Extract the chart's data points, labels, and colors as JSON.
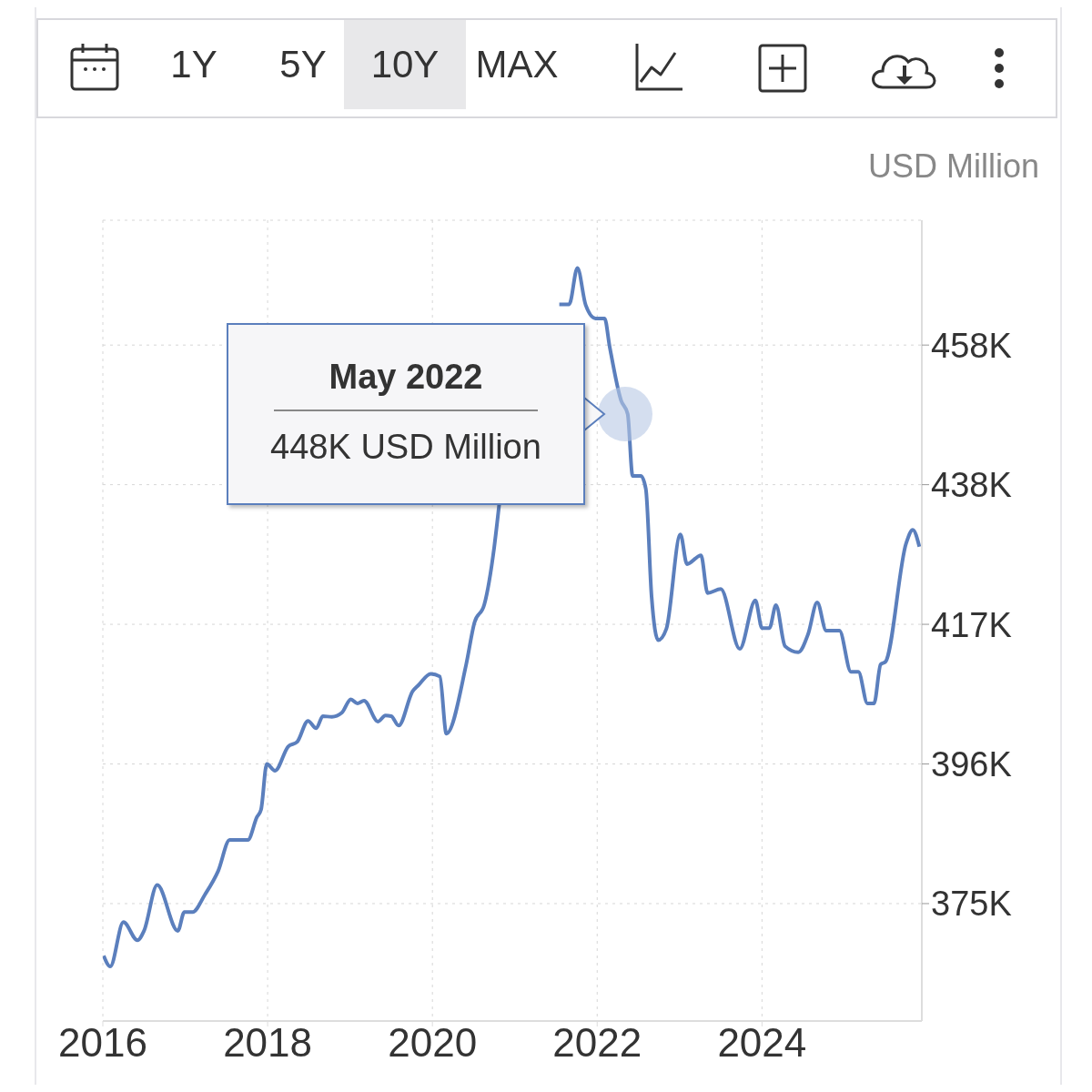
{
  "chart_data": {
    "type": "line",
    "ylabel": "USD Million",
    "annotations": [
      "1Y",
      "5Y",
      "10Y",
      "MAX",
      "May 2022",
      "448K USD Million"
    ],
    "x": [
      2016.01,
      2016.09,
      2016.25,
      2016.42,
      2016.5,
      2016.66,
      2016.91,
      2016.99,
      2017.09,
      2017.24,
      2017.4,
      2017.54,
      2017.76,
      2017.87,
      2017.92,
      2017.99,
      2018.09,
      2018.25,
      2018.36,
      2018.49,
      2018.59,
      2018.67,
      2018.78,
      2018.9,
      2019.01,
      2019.09,
      2019.17,
      2019.34,
      2019.43,
      2019.5,
      2019.59,
      2019.76,
      2019.83,
      2019.98,
      2020.09,
      2020.17,
      2020.41,
      2020.51,
      2020.63,
      2020.75,
      2020.81,
      2021.05,
      2021.27,
      2021.38,
      2021.54,
      2021.66,
      2021.76,
      2021.86,
      2021.98,
      2022.09,
      2022.15,
      2022.29,
      2022.37,
      2022.43,
      2022.53,
      2022.59,
      2022.66,
      2022.74,
      2022.84,
      2023.01,
      2023.09,
      2023.26,
      2023.34,
      2023.5,
      2023.73,
      2023.92,
      2024.0,
      2024.09,
      2024.17,
      2024.28,
      2024.44,
      2024.56,
      2024.67,
      2024.78,
      2024.94,
      2025.08,
      2025.17,
      2025.28,
      2025.36,
      2025.44,
      2025.5,
      2025.75,
      2025.83,
      2025.91
    ],
    "series": [
      {
        "color": "#5b7fbd",
        "values": [
          367.5,
          365.9,
          372.5,
          369.8,
          371.2,
          378.0,
          371.2,
          374.0,
          374.0,
          376.6,
          380.1,
          384.7,
          384.7,
          388.1,
          389.2,
          396.0,
          395.0,
          398.6,
          399.3,
          402.4,
          401.3,
          403.1,
          403.0,
          403.6,
          405.6,
          405.0,
          405.4,
          402.3,
          403.2,
          403.1,
          401.7,
          406.8,
          407.7,
          409.4,
          409.0,
          400.5,
          410.8,
          417.0,
          419.7,
          428.2,
          434.5,
          null,
          null,
          null,
          464.3,
          464.3,
          469.7,
          464.2,
          462.2,
          462.2,
          458.1,
          450.0,
          448.0,
          438.8,
          438.8,
          436.9,
          420.9,
          414.4,
          416.1,
          430.1,
          425.7,
          427.0,
          421.4,
          422.0,
          413.1,
          420.3,
          416.2,
          416.2,
          419.6,
          413.5,
          412.6,
          415.3,
          420.0,
          415.8,
          415.8,
          409.7,
          409.7,
          405.0,
          405.0,
          410.8,
          411.2,
          428.8,
          430.8,
          428.3
        ]
      }
    ],
    "xlim": [
      2016,
      2025.94
    ],
    "xticks": [
      2016,
      2018,
      2020,
      2022,
      2024
    ],
    "ylim": [
      357.8,
      476.8
    ],
    "yticks": [
      {
        "value": 375.25,
        "label": "375K"
      },
      {
        "value": 396.0,
        "label": "396K"
      },
      {
        "value": 416.75,
        "label": "417K"
      },
      {
        "value": 437.5,
        "label": "438K"
      },
      {
        "value": 458.25,
        "label": "458K"
      }
    ],
    "grid": true,
    "marker": "none",
    "line_style": "solid"
  }
}
